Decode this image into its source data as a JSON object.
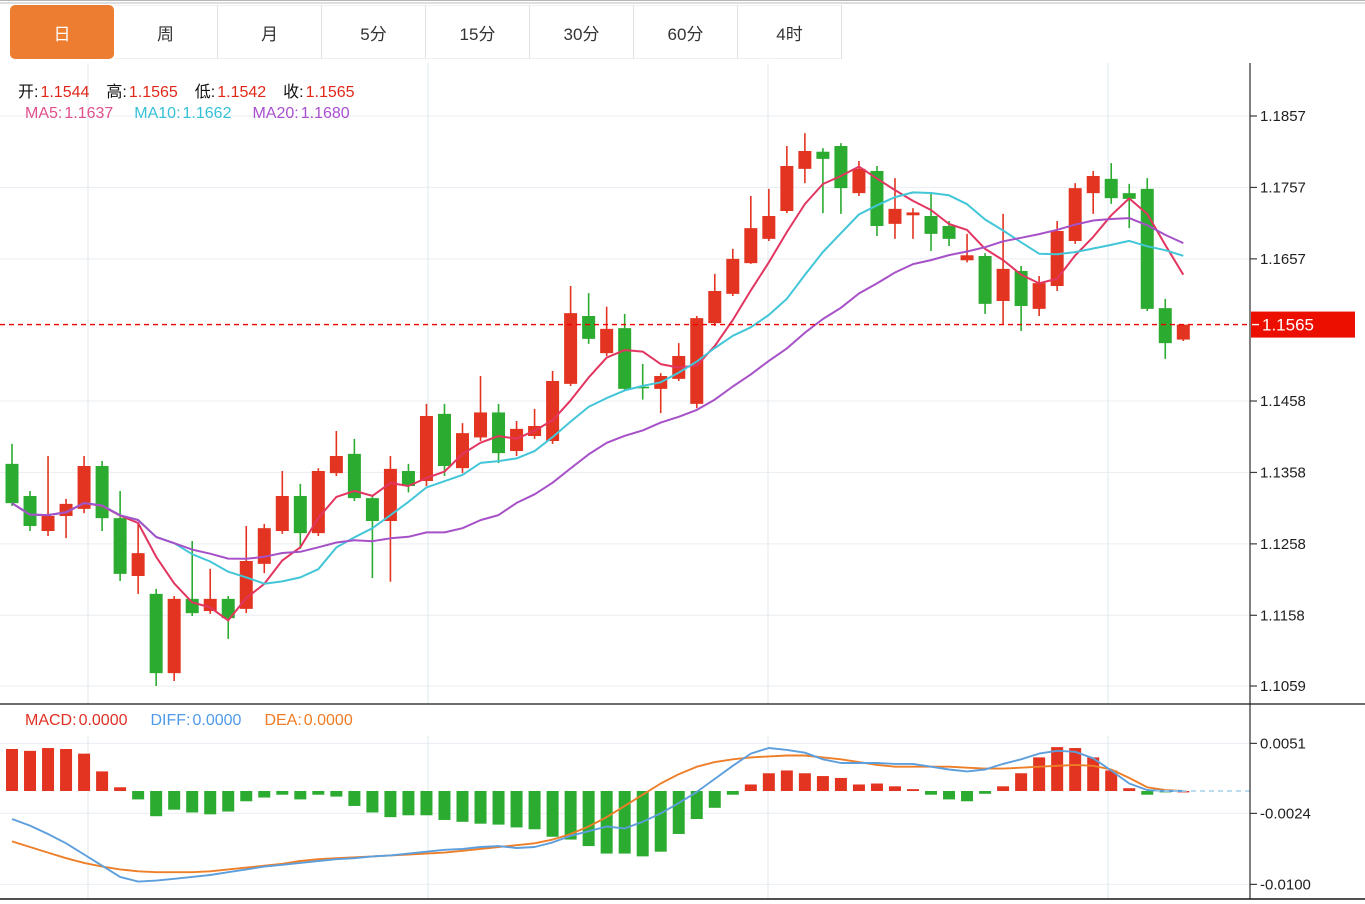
{
  "tabs": {
    "items": [
      {
        "label": "日",
        "active": true
      },
      {
        "label": "周",
        "active": false
      },
      {
        "label": "月",
        "active": false
      },
      {
        "label": "5分",
        "active": false
      },
      {
        "label": "15分",
        "active": false
      },
      {
        "label": "30分",
        "active": false
      },
      {
        "label": "60分",
        "active": false
      },
      {
        "label": "4时",
        "active": false
      }
    ]
  },
  "indicators": {
    "ohlc": {
      "open_label": "开:",
      "open": "1.1544",
      "high_label": "高:",
      "high": "1.1565",
      "low_label": "低:",
      "low": "1.1542",
      "close_label": "收:",
      "close": "1.1565"
    },
    "ma": {
      "ma5_label": "MA5:",
      "ma5": "1.1637",
      "ma10_label": "MA10:",
      "ma10": "1.1662",
      "ma20_label": "MA20:",
      "ma20": "1.1680"
    },
    "macd": {
      "macd_label": "MACD:",
      "macd": "0.0000",
      "diff_label": "DIFF:",
      "diff": "0.0000",
      "dea_label": "DEA:",
      "dea": "0.0000"
    }
  },
  "colors": {
    "up": "#e23420",
    "down": "#2bab30",
    "ma5": "#e23560",
    "ma10": "#42c6d8",
    "ma20": "#a751c8",
    "diff_line": "#5d9fdc",
    "dea_line": "#ee7e28",
    "dashed_price_line": "#f20000",
    "price_tag_bg": "#ec0f00",
    "price_tag_text": "#ffffff",
    "zero_dash": "#a6d2ea",
    "grid": "#eaeef2",
    "vgrid": "#dfe8ee",
    "axis": "#3c3c3c",
    "axis_text": "#1f1f1f",
    "tab_active_bg": "#ed7d31",
    "separator": "#161616"
  },
  "chart_data": {
    "type": "candlestick",
    "title": "",
    "xlabel": "",
    "ylabel": "",
    "legend_position": "none",
    "grid": true,
    "timeframe_selected": "日",
    "price_axis": {
      "side": "right",
      "tick_labels": [
        "1.1857",
        "1.1757",
        "1.1657",
        "1.1458",
        "1.1358",
        "1.1258",
        "1.1158",
        "1.1059"
      ],
      "range": [
        1.102,
        1.193
      ],
      "last_price": "1.1565",
      "last_price_value": 1.1565
    },
    "candles_ohlc": [
      [
        1.137,
        1.1398,
        1.1311,
        1.1315
      ],
      [
        1.1325,
        1.1332,
        1.1276,
        1.1283
      ],
      [
        1.1276,
        1.1381,
        1.1269,
        1.1297
      ],
      [
        1.1297,
        1.1321,
        1.1266,
        1.1314
      ],
      [
        1.1307,
        1.1381,
        1.1301,
        1.1367
      ],
      [
        1.1367,
        1.1374,
        1.1276,
        1.1294
      ],
      [
        1.1294,
        1.1332,
        1.1206,
        1.1216
      ],
      [
        1.1213,
        1.1286,
        1.1188,
        1.1245
      ],
      [
        1.1188,
        1.1195,
        1.1059,
        1.1077
      ],
      [
        1.1077,
        1.1185,
        1.1066,
        1.1181
      ],
      [
        1.1181,
        1.1262,
        1.1157,
        1.1161
      ],
      [
        1.1164,
        1.1223,
        1.116,
        1.1181
      ],
      [
        1.1181,
        1.1185,
        1.1125,
        1.1154
      ],
      [
        1.1167,
        1.1283,
        1.1161,
        1.1234
      ],
      [
        1.123,
        1.1286,
        1.1217,
        1.128
      ],
      [
        1.1276,
        1.136,
        1.1272,
        1.1325
      ],
      [
        1.1325,
        1.1342,
        1.1251,
        1.1273
      ],
      [
        1.1273,
        1.1364,
        1.1269,
        1.136
      ],
      [
        1.1357,
        1.1416,
        1.1353,
        1.1381
      ],
      [
        1.1384,
        1.1405,
        1.1318,
        1.1322
      ],
      [
        1.1322,
        1.1325,
        1.121,
        1.129
      ],
      [
        1.129,
        1.1381,
        1.1205,
        1.1363
      ],
      [
        1.136,
        1.137,
        1.133,
        1.1339
      ],
      [
        1.1346,
        1.1454,
        1.1339,
        1.1437
      ],
      [
        1.144,
        1.1454,
        1.1353,
        1.1367
      ],
      [
        1.1364,
        1.1427,
        1.1357,
        1.1413
      ],
      [
        1.1407,
        1.1493,
        1.1402,
        1.1442
      ],
      [
        1.1442,
        1.1454,
        1.1371,
        1.1385
      ],
      [
        1.1388,
        1.143,
        1.1381,
        1.1419
      ],
      [
        1.1409,
        1.1447,
        1.1405,
        1.1423
      ],
      [
        1.1402,
        1.15,
        1.1398,
        1.1486
      ],
      [
        1.1482,
        1.1619,
        1.1479,
        1.1581
      ],
      [
        1.1577,
        1.1609,
        1.1538,
        1.1545
      ],
      [
        1.1525,
        1.159,
        1.1521,
        1.1559
      ],
      [
        1.156,
        1.158,
        1.1472,
        1.1475
      ],
      [
        1.1478,
        1.151,
        1.146,
        1.1476
      ],
      [
        1.1475,
        1.1497,
        1.1441,
        1.1493
      ],
      [
        1.1489,
        1.1539,
        1.1486,
        1.1521
      ],
      [
        1.1454,
        1.1577,
        1.1448,
        1.1574
      ],
      [
        1.1567,
        1.1636,
        1.1563,
        1.1612
      ],
      [
        1.1608,
        1.1671,
        1.1605,
        1.1657
      ],
      [
        1.1651,
        1.1745,
        1.165,
        1.17
      ],
      [
        1.1685,
        1.1755,
        1.1682,
        1.1717
      ],
      [
        1.1724,
        1.1815,
        1.1721,
        1.1787
      ],
      [
        1.1783,
        1.1833,
        1.1763,
        1.1808
      ],
      [
        1.1807,
        1.1812,
        1.1721,
        1.1797
      ],
      [
        1.1815,
        1.1819,
        1.172,
        1.1756
      ],
      [
        1.1749,
        1.1794,
        1.1745,
        1.1783
      ],
      [
        1.178,
        1.1787,
        1.1689,
        1.1703
      ],
      [
        1.1706,
        1.177,
        1.1685,
        1.1727
      ],
      [
        1.1718,
        1.1728,
        1.1685,
        1.1722
      ],
      [
        1.1717,
        1.1748,
        1.1668,
        1.1692
      ],
      [
        1.1703,
        1.171,
        1.1675,
        1.1685
      ],
      [
        1.1655,
        1.1692,
        1.1652,
        1.1662
      ],
      [
        1.1661,
        1.1665,
        1.158,
        1.1594
      ],
      [
        1.1598,
        1.172,
        1.1565,
        1.1643
      ],
      [
        1.164,
        1.1647,
        1.1556,
        1.1591
      ],
      [
        1.1587,
        1.1633,
        1.1577,
        1.1623
      ],
      [
        1.1619,
        1.171,
        1.1612,
        1.1696
      ],
      [
        1.1682,
        1.1763,
        1.1678,
        1.1756
      ],
      [
        1.1749,
        1.178,
        1.172,
        1.1773
      ],
      [
        1.1769,
        1.1791,
        1.1734,
        1.1742
      ],
      [
        1.1749,
        1.1762,
        1.17,
        1.1741
      ],
      [
        1.1755,
        1.177,
        1.1584,
        1.1587
      ],
      [
        1.1588,
        1.1601,
        1.1517,
        1.1539
      ],
      [
        1.1544,
        1.1565,
        1.1542,
        1.1565
      ]
    ],
    "ma_periods": [
      5,
      10,
      20
    ],
    "macd": {
      "axis_tick_labels": [
        "0.0051",
        "-0.0024",
        "-0.0100"
      ],
      "hist": [
        0.0045,
        0.0043,
        0.0046,
        0.0045,
        0.004,
        0.0021,
        0.0004,
        -0.0009,
        -0.0027,
        -0.002,
        -0.0023,
        -0.0025,
        -0.0022,
        -0.0011,
        -0.0007,
        -0.0004,
        -0.0009,
        -0.0004,
        -0.0006,
        -0.0016,
        -0.0023,
        -0.0028,
        -0.0026,
        -0.0026,
        -0.0031,
        -0.0033,
        -0.0035,
        -0.0036,
        -0.0039,
        -0.0041,
        -0.0049,
        -0.0052,
        -0.0059,
        -0.0067,
        -0.0067,
        -0.007,
        -0.0065,
        -0.0046,
        -0.003,
        -0.0018,
        -0.0004,
        0.0007,
        0.0019,
        0.0022,
        0.0019,
        0.0016,
        0.0014,
        0.0007,
        0.0008,
        0.0005,
        0.0002,
        -0.0004,
        -0.0009,
        -0.0011,
        -0.0003,
        0.0005,
        0.0019,
        0.0036,
        0.0047,
        0.0046,
        0.0036,
        0.0022,
        0.0003,
        -0.0004,
        -0.0001,
        0.0
      ],
      "diff": [
        -0.003,
        -0.0037,
        -0.0046,
        -0.0056,
        -0.0068,
        -0.008,
        -0.0092,
        -0.0097,
        -0.0096,
        -0.0094,
        -0.0092,
        -0.009,
        -0.0087,
        -0.0084,
        -0.0081,
        -0.0079,
        -0.0077,
        -0.0075,
        -0.0073,
        -0.0072,
        -0.007,
        -0.0069,
        -0.0067,
        -0.0065,
        -0.0063,
        -0.0062,
        -0.006,
        -0.0059,
        -0.0061,
        -0.006,
        -0.0055,
        -0.0048,
        -0.0043,
        -0.0038,
        -0.004,
        -0.0033,
        -0.0024,
        -0.0013,
        -0.0001,
        0.0013,
        0.0027,
        0.004,
        0.0046,
        0.0044,
        0.0041,
        0.0034,
        0.003,
        0.003,
        0.003,
        0.0029,
        0.0029,
        0.0026,
        0.0023,
        0.0021,
        0.0023,
        0.0029,
        0.0034,
        0.004,
        0.0043,
        0.0042,
        0.0035,
        0.0022,
        0.0008,
        0.0001,
        0.0,
        0.0
      ],
      "dea": [
        -0.0054,
        -0.006,
        -0.0066,
        -0.0072,
        -0.0077,
        -0.0081,
        -0.0084,
        -0.0086,
        -0.0087,
        -0.0087,
        -0.0087,
        -0.0086,
        -0.0084,
        -0.0082,
        -0.008,
        -0.0078,
        -0.0075,
        -0.0073,
        -0.0072,
        -0.0071,
        -0.007,
        -0.0069,
        -0.0068,
        -0.0067,
        -0.0066,
        -0.0064,
        -0.0062,
        -0.006,
        -0.0058,
        -0.0056,
        -0.0052,
        -0.0046,
        -0.0038,
        -0.0028,
        -0.0016,
        -0.0004,
        0.0008,
        0.0018,
        0.0026,
        0.0031,
        0.0034,
        0.0036,
        0.0037,
        0.0038,
        0.0038,
        0.0036,
        0.0034,
        0.0031,
        0.0028,
        0.0026,
        0.0026,
        0.0026,
        0.0026,
        0.0025,
        0.0024,
        0.0024,
        0.0025,
        0.0026,
        0.0027,
        0.0028,
        0.0027,
        0.0023,
        0.0014,
        0.0004,
        0.0001,
        0.0
      ]
    }
  }
}
